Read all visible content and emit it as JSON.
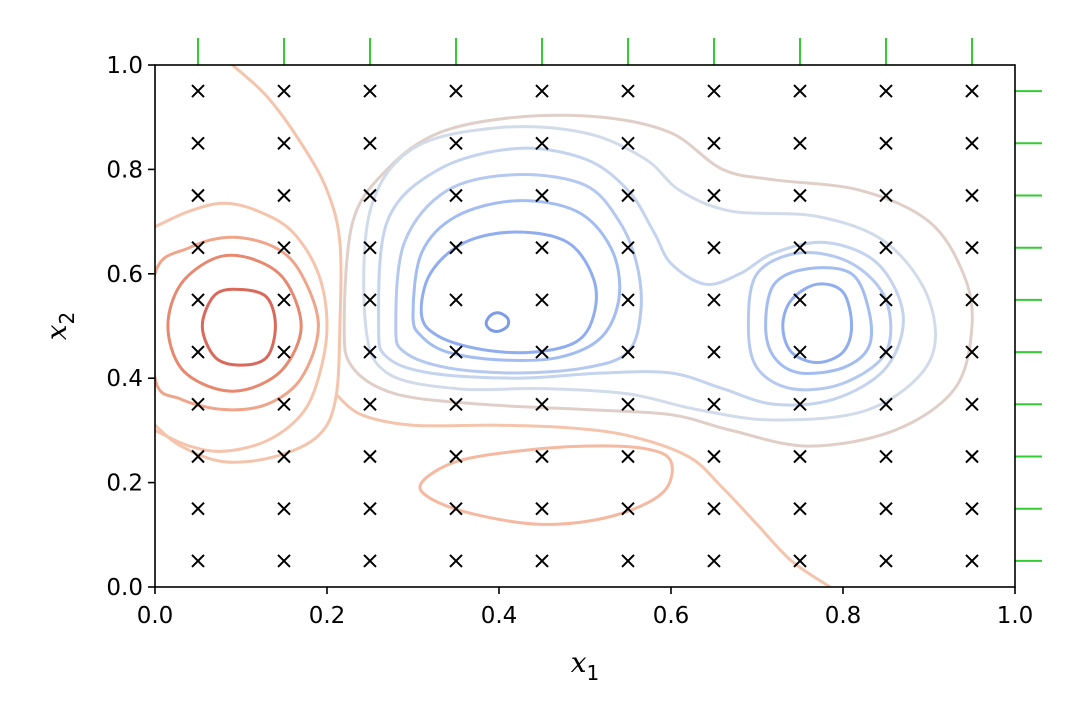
{
  "chart_data": {
    "type": "contour",
    "title": "",
    "xlabel": "x",
    "xlabel_sub": "1",
    "ylabel": "x",
    "ylabel_sub": "2",
    "xlim": [
      0.0,
      1.0
    ],
    "ylim": [
      0.0,
      1.0
    ],
    "xticks": [
      "0.0",
      "0.2",
      "0.4",
      "0.6",
      "0.8",
      "1.0"
    ],
    "yticks": [
      "0.0",
      "0.2",
      "0.4",
      "0.6",
      "0.8",
      "1.0"
    ],
    "grid": false,
    "marker_grid": {
      "marker": "x",
      "color": "#000000",
      "x": [
        0.05,
        0.15,
        0.25,
        0.35,
        0.45,
        0.55,
        0.65,
        0.75,
        0.85,
        0.95
      ],
      "y": [
        0.05,
        0.15,
        0.25,
        0.35,
        0.45,
        0.55,
        0.65,
        0.75,
        0.85,
        0.95
      ]
    },
    "rug_top": {
      "color": "#33cc33",
      "x": [
        0.05,
        0.15,
        0.25,
        0.35,
        0.45,
        0.55,
        0.65,
        0.75,
        0.85,
        0.95
      ]
    },
    "rug_right": {
      "color": "#33cc33",
      "y": [
        0.05,
        0.15,
        0.25,
        0.35,
        0.45,
        0.55,
        0.65,
        0.75,
        0.85,
        0.95
      ]
    },
    "contours": [
      {
        "level": "red-1",
        "color": "#f5c4ac",
        "points": [
          [
            0.09,
            1.0
          ],
          [
            0.13,
            0.94
          ],
          [
            0.17,
            0.85
          ],
          [
            0.2,
            0.76
          ],
          [
            0.215,
            0.66
          ],
          [
            0.215,
            0.5
          ],
          [
            0.21,
            0.36
          ],
          [
            0.19,
            0.29
          ],
          [
            0.14,
            0.25
          ],
          [
            0.08,
            0.24
          ],
          [
            0.03,
            0.27
          ],
          [
            0.0,
            0.31
          ]
        ]
      },
      {
        "level": "red-1b",
        "color": "#f5c4ac",
        "closed": false,
        "points": [
          [
            0.0,
            0.69
          ],
          [
            0.04,
            0.72
          ],
          [
            0.08,
            0.735
          ],
          [
            0.12,
            0.72
          ],
          [
            0.16,
            0.68
          ],
          [
            0.19,
            0.6
          ],
          [
            0.2,
            0.5
          ],
          [
            0.19,
            0.4
          ],
          [
            0.17,
            0.33
          ],
          [
            0.13,
            0.28
          ],
          [
            0.08,
            0.26
          ],
          [
            0.04,
            0.27
          ],
          [
            0.0,
            0.3
          ]
        ]
      },
      {
        "level": "red-2",
        "color": "#f0a58a",
        "closed": true,
        "points": [
          [
            0.0,
            0.6
          ],
          [
            0.04,
            0.65
          ],
          [
            0.09,
            0.67
          ],
          [
            0.14,
            0.65
          ],
          [
            0.17,
            0.6
          ],
          [
            0.19,
            0.5
          ],
          [
            0.17,
            0.4
          ],
          [
            0.13,
            0.35
          ],
          [
            0.08,
            0.34
          ],
          [
            0.03,
            0.36
          ],
          [
            0.0,
            0.4
          ]
        ]
      },
      {
        "level": "red-3",
        "color": "#e8886e",
        "closed": true,
        "points": [
          [
            0.015,
            0.5
          ],
          [
            0.03,
            0.58
          ],
          [
            0.07,
            0.63
          ],
          [
            0.11,
            0.63
          ],
          [
            0.15,
            0.59
          ],
          [
            0.17,
            0.5
          ],
          [
            0.15,
            0.42
          ],
          [
            0.11,
            0.38
          ],
          [
            0.07,
            0.38
          ],
          [
            0.03,
            0.42
          ]
        ]
      },
      {
        "level": "red-4",
        "color": "#d9695a",
        "closed": true,
        "points": [
          [
            0.055,
            0.5
          ],
          [
            0.07,
            0.56
          ],
          [
            0.1,
            0.57
          ],
          [
            0.13,
            0.555
          ],
          [
            0.14,
            0.5
          ],
          [
            0.13,
            0.44
          ],
          [
            0.1,
            0.425
          ],
          [
            0.07,
            0.44
          ]
        ]
      },
      {
        "level": "red-low",
        "color": "#f5b8a0",
        "closed": true,
        "points": [
          [
            0.31,
            0.2
          ],
          [
            0.35,
            0.24
          ],
          [
            0.42,
            0.26
          ],
          [
            0.5,
            0.27
          ],
          [
            0.57,
            0.265
          ],
          [
            0.6,
            0.24
          ],
          [
            0.59,
            0.18
          ],
          [
            0.53,
            0.135
          ],
          [
            0.45,
            0.12
          ],
          [
            0.37,
            0.14
          ],
          [
            0.32,
            0.17
          ]
        ]
      },
      {
        "level": "red-tail",
        "color": "#f5c4ac",
        "closed": false,
        "points": [
          [
            0.21,
            0.37
          ],
          [
            0.24,
            0.33
          ],
          [
            0.3,
            0.31
          ],
          [
            0.4,
            0.31
          ],
          [
            0.48,
            0.305
          ],
          [
            0.55,
            0.29
          ],
          [
            0.62,
            0.25
          ],
          [
            0.66,
            0.19
          ],
          [
            0.7,
            0.12
          ],
          [
            0.74,
            0.05
          ],
          [
            0.785,
            0.0
          ]
        ]
      },
      {
        "level": "neutral",
        "color": "#e0cfc8",
        "closed": true,
        "points": [
          [
            0.22,
            0.5
          ],
          [
            0.23,
            0.7
          ],
          [
            0.27,
            0.8
          ],
          [
            0.33,
            0.87
          ],
          [
            0.42,
            0.9
          ],
          [
            0.52,
            0.9
          ],
          [
            0.6,
            0.87
          ],
          [
            0.66,
            0.8
          ],
          [
            0.72,
            0.78
          ],
          [
            0.82,
            0.76
          ],
          [
            0.9,
            0.7
          ],
          [
            0.94,
            0.6
          ],
          [
            0.95,
            0.5
          ],
          [
            0.93,
            0.38
          ],
          [
            0.86,
            0.3
          ],
          [
            0.76,
            0.27
          ],
          [
            0.67,
            0.3
          ],
          [
            0.6,
            0.33
          ],
          [
            0.5,
            0.34
          ],
          [
            0.38,
            0.35
          ],
          [
            0.28,
            0.37
          ],
          [
            0.23,
            0.42
          ]
        ]
      },
      {
        "level": "blue-1",
        "color": "#d2dbea",
        "closed": true,
        "points": [
          [
            0.245,
            0.5
          ],
          [
            0.25,
            0.72
          ],
          [
            0.3,
            0.84
          ],
          [
            0.4,
            0.88
          ],
          [
            0.5,
            0.87
          ],
          [
            0.57,
            0.82
          ],
          [
            0.61,
            0.76
          ],
          [
            0.67,
            0.72
          ],
          [
            0.77,
            0.71
          ],
          [
            0.85,
            0.66
          ],
          [
            0.9,
            0.55
          ],
          [
            0.9,
            0.43
          ],
          [
            0.83,
            0.34
          ],
          [
            0.72,
            0.32
          ],
          [
            0.63,
            0.34
          ],
          [
            0.55,
            0.37
          ],
          [
            0.45,
            0.38
          ],
          [
            0.35,
            0.38
          ],
          [
            0.27,
            0.41
          ]
        ]
      },
      {
        "level": "blue-2",
        "color": "#c4d3ee",
        "closed": true,
        "points": [
          [
            0.26,
            0.5
          ],
          [
            0.27,
            0.7
          ],
          [
            0.33,
            0.8
          ],
          [
            0.42,
            0.84
          ],
          [
            0.5,
            0.82
          ],
          [
            0.55,
            0.76
          ],
          [
            0.58,
            0.68
          ],
          [
            0.6,
            0.62
          ],
          [
            0.64,
            0.58
          ],
          [
            0.68,
            0.6
          ],
          [
            0.72,
            0.64
          ],
          [
            0.78,
            0.66
          ],
          [
            0.84,
            0.62
          ],
          [
            0.87,
            0.52
          ],
          [
            0.85,
            0.42
          ],
          [
            0.79,
            0.36
          ],
          [
            0.72,
            0.35
          ],
          [
            0.66,
            0.38
          ],
          [
            0.6,
            0.41
          ],
          [
            0.52,
            0.41
          ],
          [
            0.42,
            0.4
          ],
          [
            0.32,
            0.41
          ],
          [
            0.27,
            0.44
          ]
        ]
      },
      {
        "level": "blue-3",
        "color": "#b4c8f0",
        "closed": true,
        "points": [
          [
            0.28,
            0.5
          ],
          [
            0.29,
            0.66
          ],
          [
            0.34,
            0.76
          ],
          [
            0.42,
            0.79
          ],
          [
            0.5,
            0.77
          ],
          [
            0.54,
            0.7
          ],
          [
            0.56,
            0.62
          ],
          [
            0.565,
            0.53
          ],
          [
            0.55,
            0.45
          ],
          [
            0.5,
            0.42
          ],
          [
            0.42,
            0.41
          ],
          [
            0.34,
            0.42
          ],
          [
            0.29,
            0.45
          ]
        ]
      },
      {
        "level": "blue-3b",
        "color": "#b4c8f0",
        "closed": true,
        "points": [
          [
            0.69,
            0.5
          ],
          [
            0.7,
            0.6
          ],
          [
            0.75,
            0.64
          ],
          [
            0.81,
            0.62
          ],
          [
            0.85,
            0.55
          ],
          [
            0.85,
            0.45
          ],
          [
            0.8,
            0.39
          ],
          [
            0.74,
            0.38
          ],
          [
            0.7,
            0.42
          ]
        ]
      },
      {
        "level": "blue-4",
        "color": "#a3bdf2",
        "closed": true,
        "points": [
          [
            0.3,
            0.52
          ],
          [
            0.31,
            0.64
          ],
          [
            0.35,
            0.71
          ],
          [
            0.42,
            0.74
          ],
          [
            0.49,
            0.72
          ],
          [
            0.53,
            0.65
          ],
          [
            0.54,
            0.56
          ],
          [
            0.52,
            0.48
          ],
          [
            0.47,
            0.44
          ],
          [
            0.4,
            0.435
          ],
          [
            0.34,
            0.45
          ],
          [
            0.31,
            0.48
          ]
        ]
      },
      {
        "level": "blue-4b",
        "color": "#a3bdf2",
        "closed": true,
        "points": [
          [
            0.71,
            0.5
          ],
          [
            0.72,
            0.58
          ],
          [
            0.76,
            0.61
          ],
          [
            0.81,
            0.6
          ],
          [
            0.83,
            0.53
          ],
          [
            0.83,
            0.46
          ],
          [
            0.8,
            0.42
          ],
          [
            0.75,
            0.41
          ],
          [
            0.72,
            0.44
          ]
        ]
      },
      {
        "level": "blue-5",
        "color": "#90adef",
        "closed": true,
        "points": [
          [
            0.31,
            0.52
          ],
          [
            0.32,
            0.6
          ],
          [
            0.36,
            0.66
          ],
          [
            0.42,
            0.68
          ],
          [
            0.48,
            0.66
          ],
          [
            0.51,
            0.59
          ],
          [
            0.51,
            0.52
          ],
          [
            0.49,
            0.47
          ],
          [
            0.44,
            0.45
          ],
          [
            0.38,
            0.455
          ],
          [
            0.33,
            0.48
          ]
        ]
      },
      {
        "level": "blue-5b",
        "color": "#90adef",
        "closed": true,
        "points": [
          [
            0.73,
            0.5
          ],
          [
            0.74,
            0.55
          ],
          [
            0.77,
            0.58
          ],
          [
            0.8,
            0.565
          ],
          [
            0.81,
            0.5
          ],
          [
            0.8,
            0.45
          ],
          [
            0.77,
            0.43
          ],
          [
            0.74,
            0.45
          ]
        ]
      },
      {
        "level": "blue-6",
        "color": "#7d9ce8",
        "closed": true,
        "points": [
          [
            0.385,
            0.505
          ],
          [
            0.39,
            0.52
          ],
          [
            0.4,
            0.525
          ],
          [
            0.41,
            0.515
          ],
          [
            0.41,
            0.5
          ],
          [
            0.4,
            0.49
          ],
          [
            0.39,
            0.493
          ]
        ]
      }
    ]
  }
}
